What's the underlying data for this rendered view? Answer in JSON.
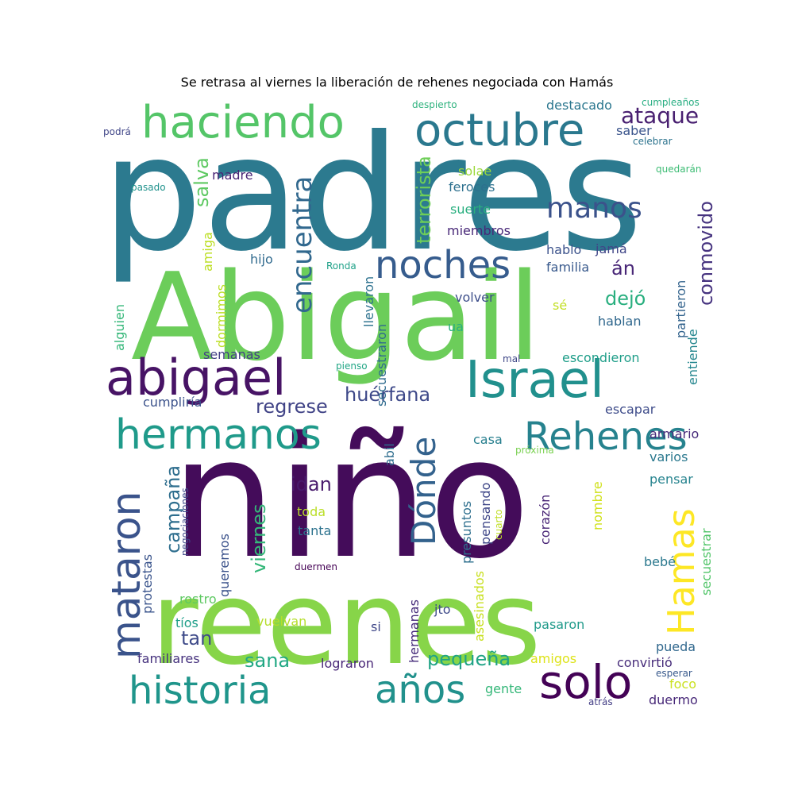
{
  "chart_data": {
    "type": "wordcloud",
    "title": "Se retrasa al viernes la liberación de rehenes negociada con Hamás",
    "words": [
      {
        "text": "padres",
        "color": "#2c7a8f",
        "rotate": false
      },
      {
        "text": "Abigail",
        "color": "#6ccd5a",
        "rotate": false
      },
      {
        "text": "niño",
        "color": "#440c5a",
        "rotate": false
      },
      {
        "text": "reenes",
        "color": "#87d549",
        "rotate": false
      },
      {
        "text": "haciendo",
        "color": "#54c568",
        "rotate": false
      },
      {
        "text": "octubre",
        "color": "#2a788e",
        "rotate": false
      },
      {
        "text": "abigael",
        "color": "#471365",
        "rotate": false
      },
      {
        "text": "Israel",
        "color": "#21908d",
        "rotate": false
      },
      {
        "text": "hermanos",
        "color": "#1f9a8a",
        "rotate": false
      },
      {
        "text": "Rehenes",
        "color": "#26828e",
        "rotate": false
      },
      {
        "text": "historia",
        "color": "#1f958b",
        "rotate": false
      },
      {
        "text": "años",
        "color": "#21918c",
        "rotate": false
      },
      {
        "text": "solo",
        "color": "#440256",
        "rotate": false
      },
      {
        "text": "noches",
        "color": "#365c8d",
        "rotate": false
      },
      {
        "text": "mataron",
        "color": "#3a538b",
        "rotate": true
      },
      {
        "text": "Dónde",
        "color": "#33628d",
        "rotate": true
      },
      {
        "text": "Hamas",
        "color": "#fde725",
        "rotate": true
      },
      {
        "text": "encuentra",
        "color": "#31688e",
        "rotate": true
      },
      {
        "text": "manos",
        "color": "#3b528b",
        "rotate": false
      },
      {
        "text": "terrorista",
        "color": "#6ece58",
        "rotate": true
      },
      {
        "text": "ataque",
        "color": "#481f70",
        "rotate": false
      },
      {
        "text": "huérfana",
        "color": "#3e4989",
        "rotate": false
      },
      {
        "text": "regrese",
        "color": "#414487",
        "rotate": false
      },
      {
        "text": "pequeña",
        "color": "#20a386",
        "rotate": false
      },
      {
        "text": "sana",
        "color": "#22a884",
        "rotate": false
      },
      {
        "text": "conmovido",
        "color": "#46337f",
        "rotate": true
      },
      {
        "text": "dejó",
        "color": "#29af7f",
        "rotate": false
      },
      {
        "text": "án",
        "color": "#482677",
        "rotate": false
      },
      {
        "text": "salva",
        "color": "#5ec962",
        "rotate": true
      },
      {
        "text": "campaña",
        "color": "#2e6e8e",
        "rotate": true
      },
      {
        "text": "viernes",
        "color": "#35b779",
        "rotate": true
      },
      {
        "text": "idan",
        "color": "#481a6c",
        "rotate": false
      },
      {
        "text": "tan",
        "color": "#3e4a89",
        "rotate": false
      },
      {
        "text": "destacado",
        "color": "#2a768e",
        "rotate": false
      },
      {
        "text": "saber",
        "color": "#3a548c",
        "rotate": false
      },
      {
        "text": "madre",
        "color": "#482475",
        "rotate": false
      },
      {
        "text": "solae",
        "color": "#9bd93c",
        "rotate": false
      },
      {
        "text": "feroces",
        "color": "#2d708e",
        "rotate": false
      },
      {
        "text": "suerte",
        "color": "#29af7f",
        "rotate": false
      },
      {
        "text": "miembros",
        "color": "#482878",
        "rotate": false
      },
      {
        "text": "hablo",
        "color": "#3b528b",
        "rotate": false
      },
      {
        "text": "jamá",
        "color": "#404688",
        "rotate": false
      },
      {
        "text": "familia",
        "color": "#38598c",
        "rotate": false
      },
      {
        "text": "hijo",
        "color": "#306a8e",
        "rotate": false
      },
      {
        "text": "volver",
        "color": "#3d4e8a",
        "rotate": false
      },
      {
        "text": "sé",
        "color": "#c2df23",
        "rotate": false
      },
      {
        "text": "hablan",
        "color": "#31688e",
        "rotate": false
      },
      {
        "text": "ua",
        "color": "#2ab07f",
        "rotate": false
      },
      {
        "text": "llevaron",
        "color": "#2c718e",
        "rotate": true
      },
      {
        "text": "secuestraron",
        "color": "#2f6b8e",
        "rotate": true
      },
      {
        "text": "partieron",
        "color": "#33638d",
        "rotate": true
      },
      {
        "text": "entiende",
        "color": "#24868e",
        "rotate": true
      },
      {
        "text": "semanas",
        "color": "#423f85",
        "rotate": false
      },
      {
        "text": "escondieron",
        "color": "#1f9e89",
        "rotate": false
      },
      {
        "text": "cumpliría",
        "color": "#3b528b",
        "rotate": false
      },
      {
        "text": "escapar",
        "color": "#3e4c8a",
        "rotate": false
      },
      {
        "text": "armario",
        "color": "#472a7a",
        "rotate": false
      },
      {
        "text": "varios",
        "color": "#2a788e",
        "rotate": false
      },
      {
        "text": "pensar",
        "color": "#25838e",
        "rotate": false
      },
      {
        "text": "casa",
        "color": "#277f8e",
        "rotate": false
      },
      {
        "text": "toda",
        "color": "#bade28",
        "rotate": false
      },
      {
        "text": "tanta",
        "color": "#2c728e",
        "rotate": false
      },
      {
        "text": "corazón",
        "color": "#482576",
        "rotate": true
      },
      {
        "text": "pensando",
        "color": "#3f4788",
        "rotate": true
      },
      {
        "text": "presuntos",
        "color": "#2e6f8e",
        "rotate": true
      },
      {
        "text": "nombre",
        "color": "#d0e11c",
        "rotate": true
      },
      {
        "text": "secuestrar",
        "color": "#52c569",
        "rotate": true
      },
      {
        "text": "bebé",
        "color": "#2a788e",
        "rotate": false
      },
      {
        "text": "rostro",
        "color": "#5ec962",
        "rotate": false
      },
      {
        "text": "tíos",
        "color": "#1f9e89",
        "rotate": false
      },
      {
        "text": "vuelvan",
        "color": "#b5de2b",
        "rotate": false
      },
      {
        "text": "si",
        "color": "#3f4788",
        "rotate": false
      },
      {
        "text": "jto",
        "color": "#3e4a89",
        "rotate": false
      },
      {
        "text": "pasaron",
        "color": "#1f9a8a",
        "rotate": false
      },
      {
        "text": "pueda",
        "color": "#31688e",
        "rotate": false
      },
      {
        "text": "familiares",
        "color": "#46327e",
        "rotate": false
      },
      {
        "text": "lograron",
        "color": "#482677",
        "rotate": false
      },
      {
        "text": "amigos",
        "color": "#dde318",
        "rotate": false
      },
      {
        "text": "convirtió",
        "color": "#472c7a",
        "rotate": false
      },
      {
        "text": "gente",
        "color": "#35b779",
        "rotate": false
      },
      {
        "text": "foco",
        "color": "#cae11f",
        "rotate": false
      },
      {
        "text": "duermo",
        "color": "#482979",
        "rotate": false
      },
      {
        "text": "hermanas",
        "color": "#472d7b",
        "rotate": true
      },
      {
        "text": "asesinados",
        "color": "#c8e020",
        "rotate": true
      },
      {
        "text": "queremos",
        "color": "#3b528b",
        "rotate": true
      },
      {
        "text": "protestas",
        "color": "#3a548c",
        "rotate": true
      },
      {
        "text": "dormimos",
        "color": "#bddf26",
        "rotate": true
      },
      {
        "text": "amiga",
        "color": "#bddf26",
        "rotate": true
      },
      {
        "text": "alguien",
        "color": "#35b779",
        "rotate": true
      },
      {
        "text": "abil",
        "color": "#2e6e8e",
        "rotate": true
      },
      {
        "text": "negociaciones",
        "color": "#3f4889",
        "rotate": true
      },
      {
        "text": "cuarto",
        "color": "#c0df25",
        "rotate": true
      },
      {
        "text": "despierto",
        "color": "#2db27d",
        "rotate": false
      },
      {
        "text": "cumpleaños",
        "color": "#26ad81",
        "rotate": false
      },
      {
        "text": "podrá",
        "color": "#404688",
        "rotate": false
      },
      {
        "text": "celebrar",
        "color": "#2c738e",
        "rotate": false
      },
      {
        "text": "quedarán",
        "color": "#3dbc74",
        "rotate": false
      },
      {
        "text": "pasado",
        "color": "#20928c",
        "rotate": false
      },
      {
        "text": "Ronda",
        "color": "#1fa188",
        "rotate": false
      },
      {
        "text": "pienso",
        "color": "#21a685",
        "rotate": false
      },
      {
        "text": "mal",
        "color": "#3f4788",
        "rotate": false
      },
      {
        "text": "próxima",
        "color": "#7ad151",
        "rotate": false
      },
      {
        "text": "duermen",
        "color": "#440154",
        "rotate": false
      },
      {
        "text": "esperar",
        "color": "#38598c",
        "rotate": false
      },
      {
        "text": "atrás",
        "color": "#433e85",
        "rotate": false
      }
    ]
  }
}
